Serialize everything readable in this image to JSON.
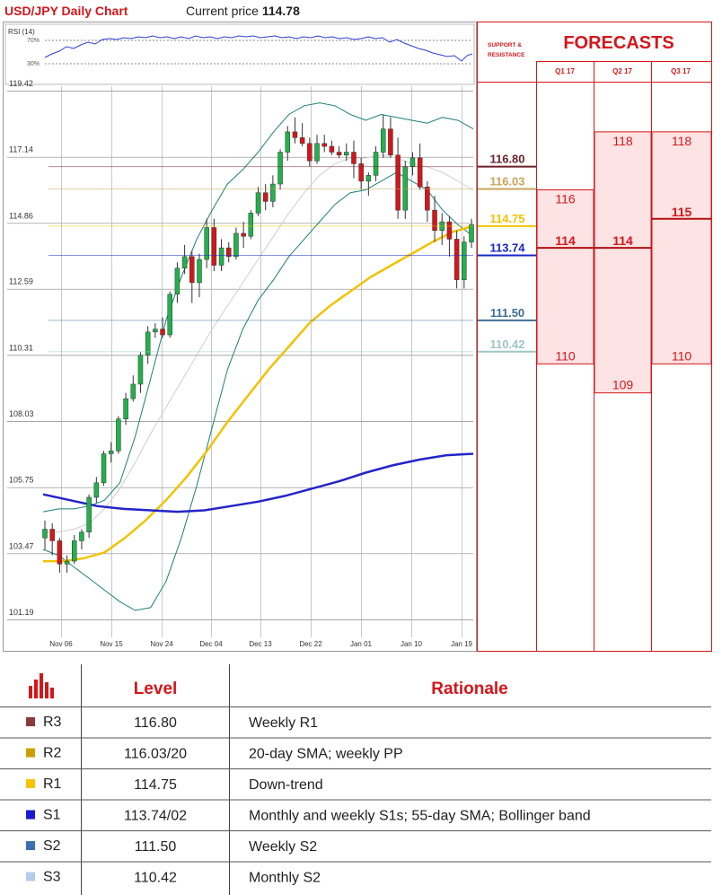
{
  "header": {
    "title": "USD/JPY Daily Chart",
    "price_label": "Current price",
    "price_value": "114.78"
  },
  "rsi": {
    "label": "RSI (14)",
    "level_high": "70%",
    "level_low": "30%"
  },
  "forecast_panel": {
    "sr_label_line1": "SUPPORT &",
    "sr_label_line2": "RESISTANCE",
    "title": "FORECASTS",
    "quarters": [
      "Q1 17",
      "Q2 17",
      "Q3 17"
    ],
    "levels": [
      {
        "value": 116.8,
        "label": "116.80",
        "color": "#6b1f2a"
      },
      {
        "value": 116.03,
        "label": "116.03",
        "color": "#c9a45a"
      },
      {
        "value": 114.75,
        "label": "114.75",
        "color": "#f2c200"
      },
      {
        "value": 113.74,
        "label": "113.74",
        "color": "#1528c8"
      },
      {
        "value": 111.5,
        "label": "111.50",
        "color": "#3d6f95"
      },
      {
        "value": 110.42,
        "label": "110.42",
        "color": "#9fc5c7"
      }
    ],
    "forecasts": [
      {
        "quarter": "Q1 17",
        "high": 116,
        "mid": 114,
        "low": 110
      },
      {
        "quarter": "Q2 17",
        "high": 118,
        "mid": 114,
        "low": 109
      },
      {
        "quarter": "Q3 17",
        "high": 118,
        "mid": 115,
        "low": 110
      }
    ]
  },
  "chart_data": {
    "type": "line",
    "title": "USD/JPY Daily Chart",
    "y_ticks": [
      "119.42",
      "117.14",
      "114.86",
      "112.59",
      "110.31",
      "108.03",
      "105.75",
      "103.47",
      "101.19"
    ],
    "x_ticks": [
      "Nov 06",
      "Nov 15",
      "Nov 24",
      "Dec 04",
      "Dec 13",
      "Dec 22",
      "Jan 01",
      "Jan 10",
      "Jan 19"
    ],
    "ylim": [
      101.19,
      119.42
    ],
    "candles": [
      [
        104.0,
        104.6,
        103.6,
        104.3
      ],
      [
        104.3,
        104.5,
        103.4,
        103.9
      ],
      [
        103.9,
        104.0,
        102.8,
        103.1
      ],
      [
        103.1,
        103.4,
        102.8,
        103.2
      ],
      [
        103.2,
        104.1,
        103.1,
        103.9
      ],
      [
        103.9,
        104.3,
        103.6,
        104.2
      ],
      [
        104.2,
        105.5,
        104.0,
        105.4
      ],
      [
        105.4,
        106.1,
        105.2,
        105.9
      ],
      [
        105.9,
        107.0,
        105.8,
        106.9
      ],
      [
        106.9,
        107.3,
        106.6,
        107.0
      ],
      [
        107.0,
        108.2,
        106.9,
        108.1
      ],
      [
        108.1,
        109.0,
        107.9,
        108.8
      ],
      [
        108.8,
        109.6,
        108.7,
        109.3
      ],
      [
        109.3,
        110.4,
        109.0,
        110.3
      ],
      [
        110.3,
        111.3,
        110.0,
        111.1
      ],
      [
        111.1,
        111.4,
        110.9,
        111.2
      ],
      [
        111.2,
        111.6,
        110.9,
        111.0
      ],
      [
        111.0,
        112.5,
        110.9,
        112.4
      ],
      [
        112.4,
        113.5,
        112.1,
        113.3
      ],
      [
        113.3,
        114.1,
        113.1,
        113.7
      ],
      [
        113.7,
        113.9,
        112.1,
        112.8
      ],
      [
        112.8,
        113.8,
        112.3,
        113.6
      ],
      [
        113.6,
        115.0,
        113.3,
        114.7
      ],
      [
        114.7,
        115.0,
        113.2,
        113.4
      ],
      [
        113.4,
        114.3,
        113.2,
        114.0
      ],
      [
        114.0,
        114.2,
        113.5,
        113.7
      ],
      [
        113.7,
        114.7,
        113.6,
        114.5
      ],
      [
        114.5,
        114.9,
        114.0,
        114.4
      ],
      [
        114.4,
        115.3,
        114.3,
        115.2
      ],
      [
        115.2,
        116.1,
        115.1,
        115.9
      ],
      [
        115.9,
        116.2,
        115.3,
        115.6
      ],
      [
        115.6,
        116.5,
        115.4,
        116.2
      ],
      [
        116.2,
        117.4,
        116.0,
        117.3
      ],
      [
        117.3,
        118.2,
        117.0,
        118.0
      ],
      [
        118.0,
        118.5,
        117.6,
        117.8
      ],
      [
        117.8,
        118.3,
        117.5,
        117.6
      ],
      [
        117.6,
        117.8,
        116.8,
        117.0
      ],
      [
        117.0,
        117.9,
        116.9,
        117.6
      ],
      [
        117.6,
        117.9,
        117.3,
        117.5
      ],
      [
        117.5,
        117.7,
        117.2,
        117.3
      ],
      [
        117.3,
        117.5,
        117.1,
        117.2
      ],
      [
        117.2,
        117.6,
        117.0,
        117.3
      ],
      [
        117.3,
        117.7,
        116.4,
        116.9
      ],
      [
        116.9,
        117.1,
        116.0,
        116.3
      ],
      [
        116.3,
        116.6,
        115.8,
        116.5
      ],
      [
        116.5,
        117.5,
        116.3,
        117.3
      ],
      [
        117.3,
        118.6,
        117.1,
        118.1
      ],
      [
        118.1,
        118.5,
        117.1,
        117.2
      ],
      [
        117.2,
        117.8,
        115.0,
        115.3
      ],
      [
        115.3,
        117.0,
        115.0,
        116.8
      ],
      [
        116.8,
        117.3,
        116.5,
        117.1
      ],
      [
        117.1,
        117.6,
        116.0,
        116.1
      ],
      [
        116.1,
        116.3,
        114.9,
        115.3
      ],
      [
        115.3,
        115.8,
        114.2,
        114.6
      ],
      [
        114.6,
        115.2,
        114.1,
        114.9
      ],
      [
        114.9,
        115.1,
        113.7,
        114.3
      ],
      [
        114.3,
        114.6,
        112.6,
        112.9
      ],
      [
        112.9,
        114.4,
        112.6,
        114.2
      ],
      [
        114.2,
        115.0,
        114.0,
        114.8
      ]
    ],
    "series": [
      {
        "name": "",
        "color": "#1a7f7a",
        "values": [
          104.9,
          105.0,
          105.0,
          105.1,
          105.3,
          105.9,
          107.5,
          109.5,
          111.5,
          113.0,
          114.3,
          115.3,
          116.2,
          116.7,
          117.3,
          118.0,
          118.6,
          118.9,
          119.0,
          118.9,
          118.6,
          118.4,
          118.6,
          118.5,
          118.4,
          118.3,
          118.5,
          118.4,
          118.1
        ]
      },
      {
        "name": "",
        "color": "#cfcfcf",
        "values": [
          104.2,
          104.2,
          104.3,
          104.5,
          105.0,
          105.7,
          106.6,
          107.6,
          108.5,
          109.4,
          110.3,
          111.2,
          112.0,
          112.8,
          113.6,
          114.4,
          115.2,
          115.9,
          116.5,
          116.9,
          117.1,
          117.1,
          117.2,
          117.1,
          116.9,
          116.8,
          116.6,
          116.3,
          116.0
        ]
      },
      {
        "name": "",
        "color": "#1a7f7a",
        "values": [
          103.6,
          103.4,
          103.0,
          102.6,
          102.2,
          101.8,
          101.5,
          101.6,
          102.5,
          104.0,
          105.8,
          107.8,
          109.8,
          111.2,
          112.2,
          112.9,
          113.7,
          114.3,
          114.9,
          115.5,
          115.9,
          116.0,
          116.3,
          116.6,
          116.3,
          116.0,
          115.3,
          114.8,
          114.4
        ]
      },
      {
        "name": "",
        "color": "#f2c200",
        "values": [
          103.2,
          103.2,
          103.3,
          103.5,
          104.0,
          104.6,
          105.3,
          106.1,
          107.0,
          108.0,
          108.9,
          109.8,
          110.6,
          111.4,
          112.0,
          112.5,
          113.0,
          113.4,
          113.8,
          114.2,
          114.55,
          114.75
        ]
      },
      {
        "name": "",
        "color": "#2424c8",
        "values": [
          105.5,
          105.3,
          105.1,
          105.0,
          104.95,
          104.9,
          104.95,
          105.1,
          105.25,
          105.45,
          105.7,
          105.95,
          106.25,
          106.5,
          106.7,
          106.85,
          106.9
        ]
      }
    ]
  },
  "table": {
    "col_level": "Level",
    "col_rationale": "Rationale",
    "rows": [
      {
        "tag": "R3",
        "color": "#8c3b3b",
        "level": "116.80",
        "rationale": "Weekly R1"
      },
      {
        "tag": "R2",
        "color": "#c9a000",
        "level": "116.03/20",
        "rationale": "20-day SMA; weekly PP"
      },
      {
        "tag": "R1",
        "color": "#f6c500",
        "level": "114.75",
        "rationale": "Down-trend"
      },
      {
        "tag": "S1",
        "color": "#1a1ad0",
        "level": "113.74/02",
        "rationale": "Monthly and weekly S1s; 55-day SMA; Bollinger band"
      },
      {
        "tag": "S2",
        "color": "#3c6fb0",
        "level": "111.50",
        "rationale": "Weekly S2"
      },
      {
        "tag": "S3",
        "color": "#b3cde8",
        "level": "110.42",
        "rationale": "Monthly S2"
      }
    ]
  }
}
